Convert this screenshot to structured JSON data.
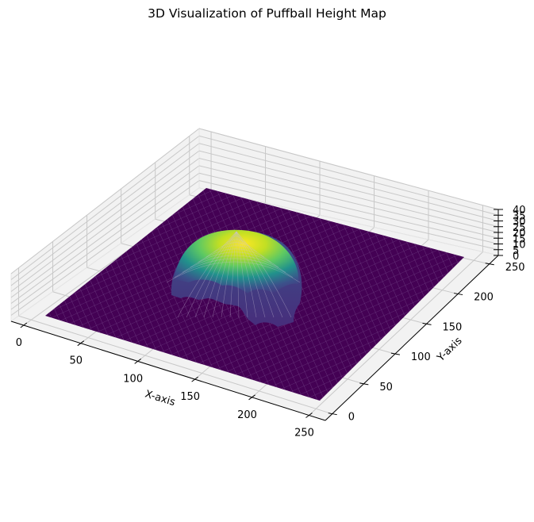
{
  "chart_data": {
    "type": "surface3d",
    "title": "3D Visualization of Puffball Height Map",
    "xlabel": "X-axis",
    "ylabel": "Y-axis",
    "zlabel": "",
    "xlim": [
      0,
      256
    ],
    "ylim": [
      0,
      256
    ],
    "zlim": [
      0,
      40
    ],
    "x_ticks": [
      0,
      50,
      100,
      150,
      200,
      250
    ],
    "y_ticks": [
      0,
      50,
      100,
      150,
      200,
      250
    ],
    "z_ticks": [
      0,
      5,
      10,
      15,
      20,
      25,
      30,
      35,
      40
    ],
    "colormap": "viridis",
    "grid": true,
    "surface": {
      "description": "Flat base at height 0 with a central dome (puffball) cluster",
      "base_height": 0,
      "dome_center": [
        110,
        140
      ],
      "dome_radius": 45,
      "dome_peak_height": 40,
      "lobes": "scalloped lower rim formed by several smaller overlapping puffballs"
    }
  },
  "colors": {
    "base": "#440154",
    "low": "#3b528b",
    "mid": "#21918c",
    "high": "#5ec962",
    "peak": "#fde725",
    "pane": "#f2f2f2",
    "gridline": "#c8c8c8"
  }
}
